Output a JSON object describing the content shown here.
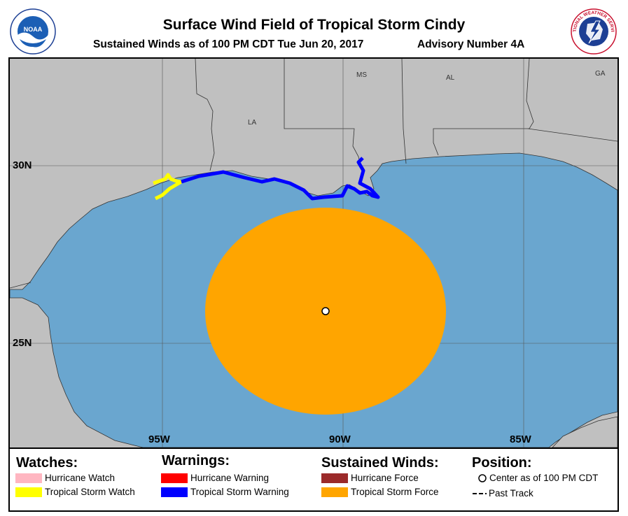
{
  "header": {
    "title": "Surface Wind Field of Tropical Storm Cindy",
    "subtitle": "Sustained Winds as of 100 PM CDT Tue Jun 20, 2017",
    "advisory": "Advisory Number 4A",
    "noaa_logo_text": "NOAA",
    "nws_logo_text": "NATIONAL WEATHER SERVICE"
  },
  "map": {
    "latitude_labels": [
      "30N",
      "25N"
    ],
    "longitude_labels": [
      "95W",
      "90W",
      "85W"
    ],
    "state_labels": [
      "MS",
      "AL",
      "GA",
      "LA"
    ],
    "colors": {
      "land": "#c0c0c0",
      "water": "#6aa6cf",
      "tropical_storm_force": "#ffa500",
      "tropical_storm_warning": "#0000ff",
      "tropical_storm_watch": "#ffff00",
      "hurricane_watch": "#ffb6c1",
      "hurricane_warning": "#ff0000",
      "hurricane_force": "#9b2a2a"
    }
  },
  "legend": {
    "watches": {
      "heading": "Watches:",
      "items": [
        "Hurricane Watch",
        "Tropical Storm Watch"
      ]
    },
    "warnings": {
      "heading": "Warnings:",
      "items": [
        "Hurricane Warning",
        "Tropical Storm Warning"
      ]
    },
    "winds": {
      "heading": "Sustained Winds:",
      "items": [
        "Hurricane Force",
        "Tropical Storm Force"
      ]
    },
    "position": {
      "heading": "Position:",
      "center": "Center as of 100 PM CDT",
      "track": "Past Track"
    }
  }
}
